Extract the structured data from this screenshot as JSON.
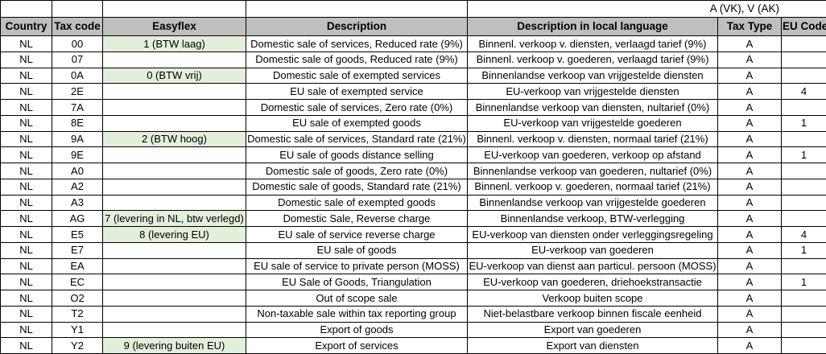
{
  "sheet": {
    "top_note": "A (VK), V (AK)",
    "columns": [
      "Country",
      "Tax code",
      "Easyflex",
      "Description",
      "Description in local language",
      "Tax Type",
      "EU Code"
    ],
    "colors": {
      "header_bg": "#bfbfbf",
      "easyflex_bg": "#e2efda",
      "grid": "#000000"
    },
    "rows": [
      {
        "country": "NL",
        "tax_code": "00",
        "easyflex": "1 (BTW laag)",
        "description": "Domestic sale of services, Reduced rate (9%)",
        "description_local": "Binnenl. verkoop v. diensten, verlaagd tarief (9%)",
        "tax_type": "A",
        "eu_code": ""
      },
      {
        "country": "NL",
        "tax_code": "07",
        "easyflex": "",
        "description": "Domestic sale of goods, Reduced rate (9%)",
        "description_local": "Binnenl. verkoop v. goederen, verlaagd tarief (9%)",
        "tax_type": "A",
        "eu_code": ""
      },
      {
        "country": "NL",
        "tax_code": "0A",
        "easyflex": "0 (BTW vrij)",
        "description": "Domestic sale of exempted services",
        "description_local": "Binnenlandse verkoop van vrijgestelde diensten",
        "tax_type": "A",
        "eu_code": ""
      },
      {
        "country": "NL",
        "tax_code": "2E",
        "easyflex": "",
        "description": "EU sale of exempted service",
        "description_local": "EU-verkoop van vrijgestelde diensten",
        "tax_type": "A",
        "eu_code": "4"
      },
      {
        "country": "NL",
        "tax_code": "7A",
        "easyflex": "",
        "description": "Domestic sale of services, Zero rate (0%)",
        "description_local": "Binnenlandse verkoop van diensten, nultarief (0%)",
        "tax_type": "A",
        "eu_code": ""
      },
      {
        "country": "NL",
        "tax_code": "8E",
        "easyflex": "",
        "description": "EU sale of exempted goods",
        "description_local": "EU-verkoop van vrijgestelde goederen",
        "tax_type": "A",
        "eu_code": "1"
      },
      {
        "country": "NL",
        "tax_code": "9A",
        "easyflex": "2 (BTW hoog)",
        "description": "Domestic sale of services, Standard rate (21%)",
        "description_local": "Binnenl. verkoop v. diensten, normaal tarief (21%)",
        "tax_type": "A",
        "eu_code": ""
      },
      {
        "country": "NL",
        "tax_code": "9E",
        "easyflex": "",
        "description": "EU sale of goods distance selling",
        "description_local": "EU-verkoop van goederen, verkoop op afstand",
        "tax_type": "A",
        "eu_code": "1"
      },
      {
        "country": "NL",
        "tax_code": "A0",
        "easyflex": "",
        "description": "Domestic sale of goods, Zero rate (0%)",
        "description_local": "Binnenlandse verkoop van goederen, nultarief (0%)",
        "tax_type": "A",
        "eu_code": ""
      },
      {
        "country": "NL",
        "tax_code": "A2",
        "easyflex": "",
        "description": "Domestic sale of goods, Standard rate (21%)",
        "description_local": "Binnenl. verkoop v. goederen, normaal tarief (21%)",
        "tax_type": "A",
        "eu_code": ""
      },
      {
        "country": "NL",
        "tax_code": "A3",
        "easyflex": "",
        "description": "Domestic sale of exempted goods",
        "description_local": "Binnenlandse verkoop van vrijgestelde goederen",
        "tax_type": "A",
        "eu_code": ""
      },
      {
        "country": "NL",
        "tax_code": "AG",
        "easyflex": "7 (levering in NL, btw verlegd)",
        "description": "Domestic Sale, Reverse charge",
        "description_local": "Binnenlandse verkoop, BTW-verlegging",
        "tax_type": "A",
        "eu_code": ""
      },
      {
        "country": "NL",
        "tax_code": "E5",
        "easyflex": "8 (levering EU)",
        "description": "EU sale of service reverse charge",
        "description_local": "EU-verkoop van diensten onder verleggingsregeling",
        "tax_type": "A",
        "eu_code": "4"
      },
      {
        "country": "NL",
        "tax_code": "E7",
        "easyflex": "",
        "description": "EU sale of goods",
        "description_local": "EU-verkoop van goederen",
        "tax_type": "A",
        "eu_code": "1"
      },
      {
        "country": "NL",
        "tax_code": "EA",
        "easyflex": "",
        "description": "EU sale of service to private person (MOSS)",
        "description_local": "EU-verkoop van dienst aan particul. persoon (MOSS)",
        "tax_type": "A",
        "eu_code": ""
      },
      {
        "country": "NL",
        "tax_code": "EC",
        "easyflex": "",
        "description": "EU Sale of Goods, Triangulation",
        "description_local": "EU-verkoop van goederen, driehoekstransactie",
        "tax_type": "A",
        "eu_code": "1"
      },
      {
        "country": "NL",
        "tax_code": "O2",
        "easyflex": "",
        "description": "Out of scope sale",
        "description_local": "Verkoop buiten scope",
        "tax_type": "A",
        "eu_code": ""
      },
      {
        "country": "NL",
        "tax_code": "T2",
        "easyflex": "",
        "description": "Non-taxable sale within tax reporting group",
        "description_local": "Niet-belastbare verkoop binnen fiscale eenheid",
        "tax_type": "A",
        "eu_code": ""
      },
      {
        "country": "NL",
        "tax_code": "Y1",
        "easyflex": "",
        "description": "Export of goods",
        "description_local": "Export van goederen",
        "tax_type": "A",
        "eu_code": ""
      },
      {
        "country": "NL",
        "tax_code": "Y2",
        "easyflex": "9 (levering buiten EU)",
        "description": "Export of services",
        "description_local": "Export van diensten",
        "tax_type": "A",
        "eu_code": ""
      }
    ]
  }
}
